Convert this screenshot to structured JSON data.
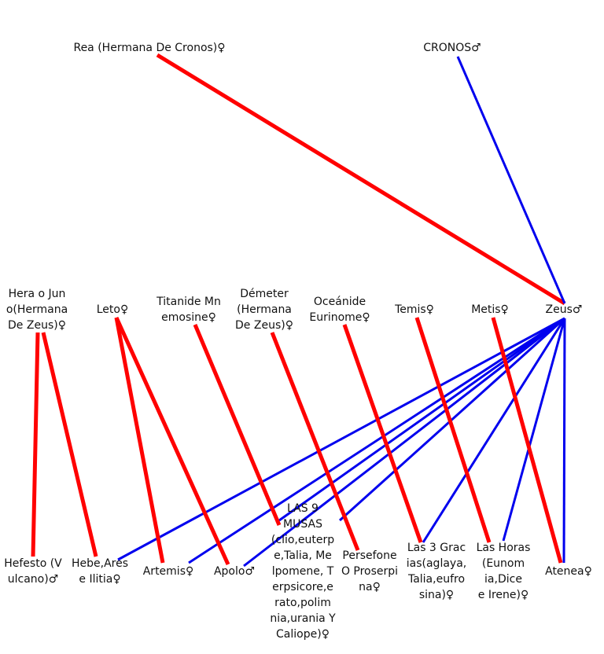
{
  "nodes": [
    {
      "lines": [
        "Rea (Hermana De Cronos)♀"
      ]
    },
    {
      "lines": [
        "CRONOS♂"
      ]
    },
    {
      "lines": [
        "Hera o Jun",
        "o(Hermana",
        "De Zeus)♀"
      ]
    },
    {
      "lines": [
        "Leto♀"
      ]
    },
    {
      "lines": [
        "Titanide Mn",
        "emosine♀"
      ]
    },
    {
      "lines": [
        "Démeter",
        "(Hermana",
        "De Zeus)♀"
      ]
    },
    {
      "lines": [
        "Oceánide",
        "Eurinome♀"
      ]
    },
    {
      "lines": [
        "Temis♀"
      ]
    },
    {
      "lines": [
        "Metis♀"
      ]
    },
    {
      "lines": [
        "Zeus♂"
      ]
    },
    {
      "lines": [
        "Hefesto (V",
        "ulcano)♂"
      ]
    },
    {
      "lines": [
        "Hebe,Ares",
        "e Ilitia♀"
      ]
    },
    {
      "lines": [
        "Artemis♀"
      ]
    },
    {
      "lines": [
        "Apolo♂"
      ]
    },
    {
      "lines": [
        "LAS 9",
        "MUSAS",
        "(clio,euterp",
        "e,Talia, Me",
        "lpomene, T",
        "erpsicore,e",
        "rato,polim",
        "nia,urania Y",
        "Caliope)♀"
      ]
    },
    {
      "lines": [
        "Persefone",
        "O Proserpi",
        "na♀"
      ]
    },
    {
      "lines": [
        "Las 3 Grac",
        "ias(aglaya,",
        "Talia,eufro",
        "sina)♀"
      ]
    },
    {
      "lines": [
        "Las Horas",
        "(Eunom",
        "ia,Dice",
        "e Irene)♀"
      ]
    },
    {
      "lines": [
        "Atenea♀"
      ]
    }
  ]
}
